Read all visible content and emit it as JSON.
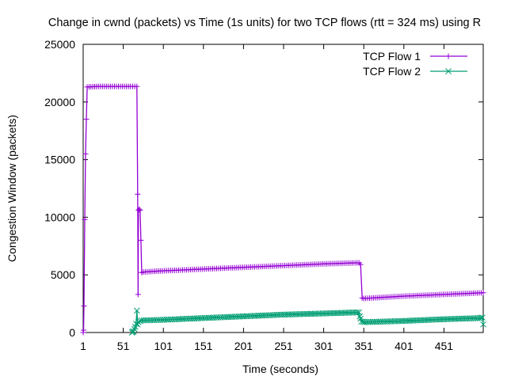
{
  "chart_data": {
    "type": "line",
    "title": "Change in cwnd (packets) vs Time (1s units) for two TCP flows (rtt = 324 ms) using R",
    "xlabel": "Time (seconds)",
    "ylabel": "Congestion Window (packets)",
    "xlim": [
      1,
      500
    ],
    "ylim": [
      0,
      25000
    ],
    "x_ticks": [
      1,
      51,
      101,
      151,
      201,
      251,
      301,
      351,
      401,
      451
    ],
    "y_ticks": [
      0,
      5000,
      10000,
      15000,
      20000,
      25000
    ],
    "grid": false,
    "legend_position": "top-right",
    "series": [
      {
        "name": "TCP Flow 1",
        "color": "#9400d3",
        "marker": "plus",
        "points": [
          [
            1,
            0
          ],
          [
            1.5,
            200
          ],
          [
            2,
            2300
          ],
          [
            3,
            9800
          ],
          [
            4,
            15500
          ],
          [
            5,
            18500
          ],
          [
            6,
            21300
          ],
          [
            20,
            21350
          ],
          [
            40,
            21350
          ],
          [
            60,
            21350
          ],
          [
            68,
            21350
          ],
          [
            69,
            12000
          ],
          [
            69.5,
            3300
          ],
          [
            70,
            10600
          ],
          [
            71,
            10700
          ],
          [
            72,
            10600
          ],
          [
            73,
            8000
          ],
          [
            74,
            5200
          ],
          [
            76,
            5250
          ],
          [
            100,
            5350
          ],
          [
            150,
            5500
          ],
          [
            200,
            5650
          ],
          [
            250,
            5800
          ],
          [
            300,
            5950
          ],
          [
            345,
            6050
          ],
          [
            347,
            5900
          ],
          [
            349,
            3000
          ],
          [
            351,
            2950
          ],
          [
            375,
            3050
          ],
          [
            400,
            3150
          ],
          [
            450,
            3300
          ],
          [
            500,
            3450
          ]
        ]
      },
      {
        "name": "TCP Flow 2",
        "color": "#009e73",
        "marker": "x",
        "points": [
          [
            62,
            0
          ],
          [
            63,
            50
          ],
          [
            64,
            100
          ],
          [
            65,
            300
          ],
          [
            66,
            500
          ],
          [
            67,
            750
          ],
          [
            68,
            1900
          ],
          [
            69,
            700
          ],
          [
            70,
            900
          ],
          [
            72,
            1000
          ],
          [
            74,
            1050
          ],
          [
            100,
            1100
          ],
          [
            150,
            1250
          ],
          [
            200,
            1400
          ],
          [
            250,
            1550
          ],
          [
            300,
            1650
          ],
          [
            345,
            1750
          ],
          [
            346,
            1400
          ],
          [
            347,
            1200
          ],
          [
            348,
            950
          ],
          [
            352,
            900
          ],
          [
            400,
            1000
          ],
          [
            450,
            1150
          ],
          [
            495,
            1250
          ],
          [
            499,
            1300
          ],
          [
            500,
            700
          ]
        ]
      }
    ]
  }
}
